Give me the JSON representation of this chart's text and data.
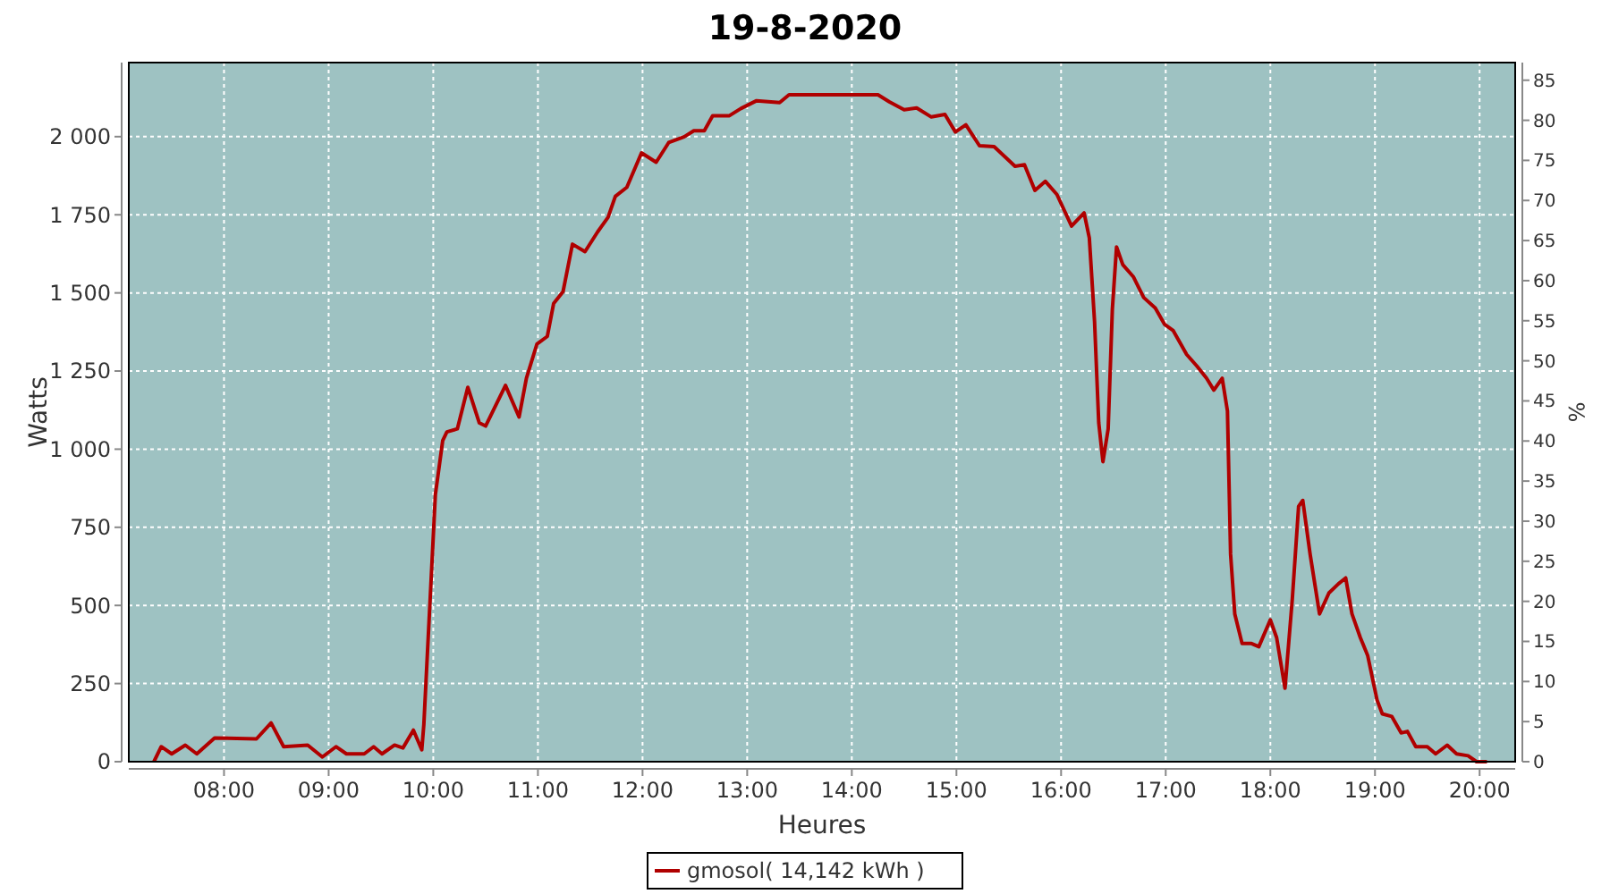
{
  "chart_data": {
    "type": "line",
    "title": "19-8-2020",
    "xlabel": "Heures",
    "ylabel": "Watts",
    "y2label": "%",
    "xlim": [
      7.09,
      20.34
    ],
    "xticks": [
      {
        "value": 8,
        "label": "08:00"
      },
      {
        "value": 9,
        "label": "09:00"
      },
      {
        "value": 10,
        "label": "10:00"
      },
      {
        "value": 11,
        "label": "11:00"
      },
      {
        "value": 12,
        "label": "12:00"
      },
      {
        "value": 13,
        "label": "13:00"
      },
      {
        "value": 14,
        "label": "14:00"
      },
      {
        "value": 15,
        "label": "15:00"
      },
      {
        "value": 16,
        "label": "16:00"
      },
      {
        "value": 17,
        "label": "17:00"
      },
      {
        "value": 18,
        "label": "18:00"
      },
      {
        "value": 19,
        "label": "19:00"
      },
      {
        "value": 20,
        "label": "20:00"
      }
    ],
    "ylim": [
      0,
      2237
    ],
    "yticks": [
      0,
      250,
      500,
      750,
      {
        "value": 1000,
        "label": "1 000"
      },
      {
        "value": 1250,
        "label": "1 250"
      },
      {
        "value": 1500,
        "label": "1 500"
      },
      {
        "value": 1750,
        "label": "1 750"
      },
      {
        "value": 2000,
        "label": "2 000"
      }
    ],
    "y2lim": [
      0,
      87.2
    ],
    "y2ticks": [
      0,
      5,
      10,
      15,
      20,
      25,
      30,
      35,
      40,
      45,
      50,
      55,
      60,
      65,
      70,
      75,
      80,
      85
    ],
    "grid": true,
    "legend": "bottom",
    "line_style": "solid",
    "x": [
      7.33,
      7.4,
      7.5,
      7.63,
      7.74,
      7.91,
      8.31,
      8.45,
      8.57,
      8.8,
      8.94,
      9.07,
      9.17,
      9.34,
      9.43,
      9.51,
      9.63,
      9.71,
      9.81,
      9.89,
      9.91,
      9.96,
      10.02,
      10.09,
      10.13,
      10.23,
      10.33,
      10.44,
      10.5,
      10.57,
      10.69,
      10.82,
      10.89,
      10.99,
      11.09,
      11.15,
      11.24,
      11.33,
      11.45,
      11.57,
      11.67,
      11.74,
      11.85,
      11.99,
      12.13,
      12.25,
      12.4,
      12.49,
      12.59,
      12.67,
      12.83,
      12.94,
      13.09,
      13.31,
      13.4,
      13.69,
      14.25,
      14.36,
      14.5,
      14.62,
      14.76,
      14.89,
      14.99,
      15.09,
      15.22,
      15.36,
      15.56,
      15.65,
      15.75,
      15.85,
      15.96,
      16.1,
      16.22,
      16.27,
      16.32,
      16.36,
      16.4,
      16.45,
      16.49,
      16.53,
      16.59,
      16.69,
      16.79,
      16.9,
      16.99,
      17.07,
      17.2,
      17.3,
      17.39,
      17.46,
      17.54,
      17.59,
      17.62,
      17.66,
      17.73,
      17.82,
      17.89,
      18.0,
      18.06,
      18.14,
      18.21,
      18.27,
      18.31,
      18.38,
      18.47,
      18.56,
      18.65,
      18.72,
      18.78,
      18.86,
      18.93,
      19.02,
      19.07,
      19.16,
      19.25,
      19.31,
      19.39,
      19.5,
      19.58,
      19.69,
      19.78,
      19.89,
      19.97,
      20.07
    ],
    "series": [
      {
        "name": "gmosol( 14,142 kWh )",
        "color": "#b00000",
        "values": [
          0,
          48,
          25,
          53,
          25,
          76,
          73,
          124,
          48,
          53,
          15,
          48,
          25,
          25,
          48,
          25,
          53,
          44,
          101,
          38,
          120,
          454,
          855,
          1027,
          1055,
          1065,
          1198,
          1084,
          1074,
          1122,
          1204,
          1103,
          1227,
          1336,
          1361,
          1466,
          1504,
          1656,
          1632,
          1695,
          1742,
          1809,
          1838,
          1948,
          1918,
          1981,
          2000,
          2019,
          2019,
          2067,
          2067,
          2090,
          2115,
          2109,
          2134,
          2134,
          2134,
          2111,
          2086,
          2092,
          2063,
          2071,
          2015,
          2038,
          1971,
          1968,
          1905,
          1910,
          1828,
          1857,
          1815,
          1714,
          1756,
          1676,
          1408,
          1084,
          960,
          1065,
          1447,
          1647,
          1590,
          1552,
          1485,
          1452,
          1399,
          1380,
          1303,
          1265,
          1227,
          1189,
          1227,
          1122,
          664,
          473,
          378,
          378,
          368,
          454,
          397,
          235,
          521,
          817,
          836,
          664,
          473,
          540,
          569,
          588,
          473,
          397,
          340,
          197,
          153,
          145,
          92,
          97,
          48,
          48,
          25,
          53,
          25,
          19,
          0,
          0
        ]
      }
    ]
  }
}
